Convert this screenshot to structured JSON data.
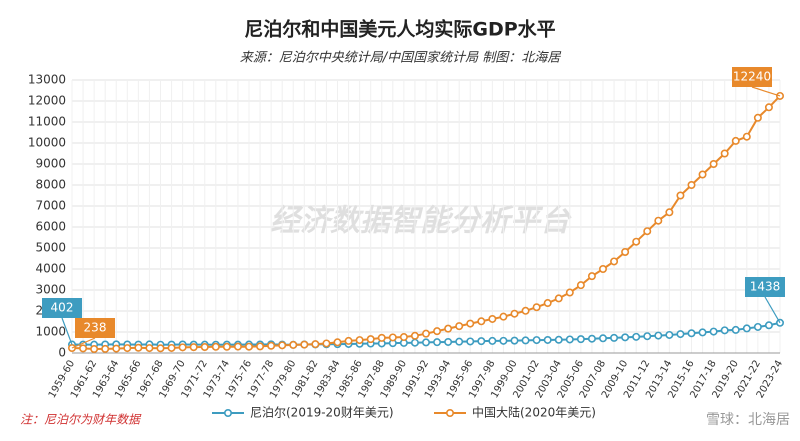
{
  "chart_data": {
    "type": "line",
    "title": "尼泊尔和中国美元人均实际GDP水平",
    "subtitle": "来源：尼泊尔中央统计局/中国国家统计局 制图：北海居",
    "note": "注：尼泊尔为财年数据",
    "watermark": "经济数据智能分析平台",
    "credit": "雪球：北海居",
    "categories": [
      "1959-60",
      null,
      "1961-62",
      null,
      "1963-64",
      null,
      "1965-66",
      null,
      "1967-68",
      null,
      "1969-70",
      null,
      "1971-72",
      null,
      "1973-74",
      null,
      "1975-76",
      null,
      "1977-78",
      null,
      "1979-80",
      null,
      "1981-82",
      null,
      "1983-84",
      null,
      "1985-86",
      null,
      "1987-88",
      null,
      "1989-90",
      null,
      "1991-92",
      null,
      "1993-94",
      null,
      "1995-96",
      null,
      "1997-98",
      null,
      "1999-00",
      null,
      "2001-02",
      null,
      "2003-04",
      null,
      "2005-06",
      null,
      "2007-08",
      null,
      "2009-10",
      null,
      "2011-12",
      null,
      "2013-14",
      null,
      "2015-16",
      null,
      "2017-18",
      null,
      "2019-20",
      null,
      "2021-22",
      null,
      "2023-24"
    ],
    "series": [
      {
        "name": "尼泊尔(2019-20财年美元)",
        "color": "#3d9cc0",
        "values": [
          402,
          400,
          398,
          405,
          410,
          405,
          400,
          408,
          395,
          400,
          405,
          400,
          398,
          395,
          400,
          398,
          402,
          405,
          410,
          400,
          390,
          405,
          410,
          415,
          420,
          430,
          440,
          450,
          455,
          470,
          480,
          490,
          505,
          515,
          525,
          540,
          550,
          565,
          575,
          580,
          590,
          600,
          615,
          620,
          630,
          645,
          660,
          680,
          700,
          720,
          745,
          770,
          800,
          830,
          860,
          900,
          940,
          980,
          1020,
          1080,
          1100,
          1170,
          1240,
          1320,
          1438
        ]
      },
      {
        "name": "中国大陆(2020年美元)",
        "color": "#e8892b",
        "values": [
          238,
          220,
          190,
          195,
          210,
          235,
          250,
          235,
          225,
          240,
          270,
          280,
          285,
          295,
          295,
          305,
          300,
          315,
          345,
          365,
          385,
          400,
          420,
          455,
          510,
          575,
          615,
          660,
          720,
          740,
          760,
          820,
          920,
          1040,
          1160,
          1280,
          1400,
          1510,
          1620,
          1730,
          1870,
          2010,
          2180,
          2380,
          2600,
          2880,
          3230,
          3660,
          4000,
          4360,
          4810,
          5300,
          5800,
          6300,
          6700,
          7500,
          8000,
          8500,
          9000,
          9500,
          10100,
          10300,
          11200,
          11700,
          12240
        ]
      }
    ],
    "ylim": [
      0,
      13000
    ],
    "yticks": [
      0,
      1000,
      2000,
      3000,
      4000,
      5000,
      6000,
      7000,
      8000,
      9000,
      10000,
      11000,
      12000,
      13000
    ],
    "grid": true
  }
}
